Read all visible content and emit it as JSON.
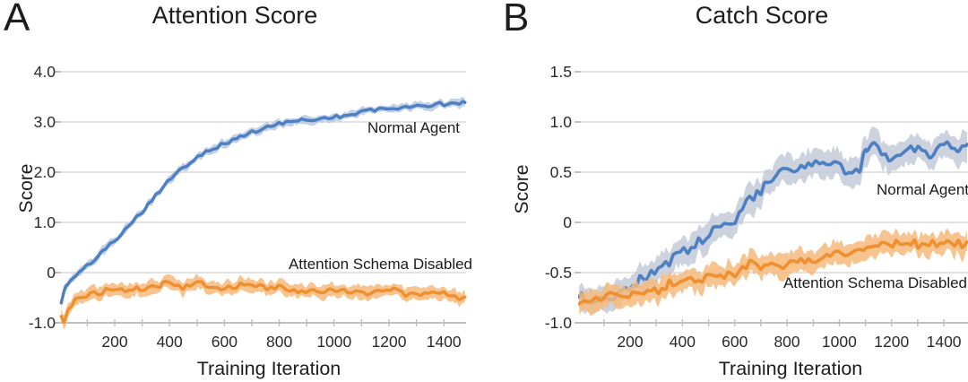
{
  "style": {
    "background": "#ffffff",
    "text_color": "#1d1d1f",
    "grid_color": "#d9d9d9",
    "axis_color": "#bfbfbf"
  },
  "chart_data": [
    {
      "type": "line",
      "panel_letter": "A",
      "title": "Attention Score",
      "xlabel": "Training Iteration",
      "ylabel": "Score",
      "xlim": [
        0,
        1480
      ],
      "ylim": [
        -1.0,
        4.0
      ],
      "grid": "horizontal",
      "legend_position": "inline-annotations",
      "x_ticks": [
        {
          "label": "200",
          "v": 200
        },
        {
          "label": "400",
          "v": 400
        },
        {
          "label": "600",
          "v": 600
        },
        {
          "label": "800",
          "v": 800
        },
        {
          "label": "1000",
          "v": 1000
        },
        {
          "label": "1200",
          "v": 1200
        },
        {
          "label": "1400",
          "v": 1400
        }
      ],
      "y_ticks": [
        {
          "label": "4.0",
          "v": 4.0
        },
        {
          "label": "3.0",
          "v": 3.0
        },
        {
          "label": "2.0",
          "v": 2.0
        },
        {
          "label": "1.0",
          "v": 1.0
        },
        {
          "label": "0",
          "v": 0.0
        },
        {
          "label": "-1.0",
          "v": -1.0
        }
      ],
      "series": [
        {
          "name": "Normal Agent",
          "color": "#4d7fc3",
          "band_color": "#b9c8e0",
          "band_halfwidth": 0.05,
          "noise_amp": 0.04,
          "x": [
            5,
            20,
            50,
            100,
            150,
            200,
            250,
            300,
            350,
            400,
            450,
            500,
            550,
            600,
            650,
            700,
            750,
            800,
            850,
            900,
            950,
            1000,
            1050,
            1100,
            1150,
            1200,
            1250,
            1300,
            1350,
            1400,
            1450,
            1480
          ],
          "y": [
            -0.6,
            -0.3,
            -0.1,
            0.12,
            0.37,
            0.62,
            0.95,
            1.2,
            1.55,
            1.85,
            2.1,
            2.3,
            2.45,
            2.55,
            2.68,
            2.78,
            2.88,
            2.97,
            3.02,
            3.05,
            3.05,
            3.1,
            3.12,
            3.2,
            3.22,
            3.25,
            3.3,
            3.3,
            3.33,
            3.36,
            3.4,
            3.4
          ]
        },
        {
          "name": "Attention Schema Disabled",
          "color": "#ef8f2e",
          "band_color": "#f6ba7d",
          "band_halfwidth": 0.09,
          "noise_amp": 0.06,
          "x": [
            5,
            15,
            30,
            60,
            100,
            150,
            200,
            250,
            300,
            350,
            400,
            450,
            500,
            550,
            600,
            650,
            700,
            750,
            800,
            850,
            900,
            950,
            1000,
            1050,
            1100,
            1150,
            1200,
            1250,
            1300,
            1350,
            1400,
            1450,
            1480
          ],
          "y": [
            -0.85,
            -1.05,
            -0.75,
            -0.55,
            -0.45,
            -0.38,
            -0.33,
            -0.36,
            -0.3,
            -0.27,
            -0.25,
            -0.3,
            -0.18,
            -0.26,
            -0.32,
            -0.28,
            -0.2,
            -0.32,
            -0.3,
            -0.36,
            -0.38,
            -0.35,
            -0.4,
            -0.34,
            -0.4,
            -0.36,
            -0.38,
            -0.4,
            -0.44,
            -0.4,
            -0.43,
            -0.5,
            -0.46
          ]
        }
      ]
    },
    {
      "type": "line",
      "panel_letter": "B",
      "title": "Catch Score",
      "xlabel": "Training Iteration",
      "ylabel": "Score",
      "xlim": [
        0,
        1490
      ],
      "ylim": [
        -1.0,
        1.5
      ],
      "grid": "horizontal",
      "legend_position": "inline-annotations",
      "x_ticks": [
        {
          "label": "200",
          "v": 200
        },
        {
          "label": "400",
          "v": 400
        },
        {
          "label": "600",
          "v": 600
        },
        {
          "label": "800",
          "v": 800
        },
        {
          "label": "1000",
          "v": 1000
        },
        {
          "label": "1200",
          "v": 1200
        },
        {
          "label": "1400",
          "v": 1400
        }
      ],
      "y_ticks": [
        {
          "label": "1.5",
          "v": 1.5
        },
        {
          "label": "1.0",
          "v": 1.0
        },
        {
          "label": "0.5",
          "v": 0.5
        },
        {
          "label": "0",
          "v": 0.0
        },
        {
          "label": "-0.5",
          "v": -0.5
        },
        {
          "label": "-1.0",
          "v": -1.0
        }
      ],
      "series": [
        {
          "name": "Normal Agent",
          "color": "#4d7fc3",
          "band_color": "#c4cbd8",
          "band_halfwidth": 0.1,
          "noise_amp": 0.055,
          "x": [
            5,
            50,
            100,
            150,
            200,
            250,
            300,
            350,
            400,
            450,
            500,
            550,
            600,
            650,
            700,
            750,
            800,
            850,
            900,
            950,
            1000,
            1050,
            1080,
            1100,
            1150,
            1200,
            1250,
            1300,
            1350,
            1400,
            1450,
            1490
          ],
          "y": [
            -0.75,
            -0.78,
            -0.72,
            -0.7,
            -0.66,
            -0.58,
            -0.48,
            -0.42,
            -0.32,
            -0.25,
            -0.15,
            -0.05,
            0.05,
            0.18,
            0.3,
            0.42,
            0.52,
            0.55,
            0.6,
            0.52,
            0.56,
            0.5,
            0.52,
            0.72,
            0.72,
            0.65,
            0.7,
            0.75,
            0.7,
            0.78,
            0.72,
            0.78
          ]
        },
        {
          "name": "Attention Schema Disabled",
          "color": "#ef8f2e",
          "band_color": "#f6ba7d",
          "band_halfwidth": 0.075,
          "noise_amp": 0.05,
          "x": [
            5,
            50,
            100,
            150,
            200,
            250,
            300,
            350,
            400,
            450,
            500,
            550,
            600,
            650,
            700,
            750,
            800,
            850,
            900,
            950,
            1000,
            1050,
            1100,
            1150,
            1200,
            1250,
            1300,
            1350,
            1400,
            1450,
            1490
          ],
          "y": [
            -0.78,
            -0.8,
            -0.74,
            -0.72,
            -0.7,
            -0.68,
            -0.66,
            -0.62,
            -0.58,
            -0.55,
            -0.52,
            -0.5,
            -0.52,
            -0.45,
            -0.44,
            -0.42,
            -0.4,
            -0.37,
            -0.34,
            -0.33,
            -0.31,
            -0.3,
            -0.25,
            -0.26,
            -0.22,
            -0.2,
            -0.23,
            -0.2,
            -0.26,
            -0.2,
            -0.21
          ]
        }
      ]
    }
  ]
}
